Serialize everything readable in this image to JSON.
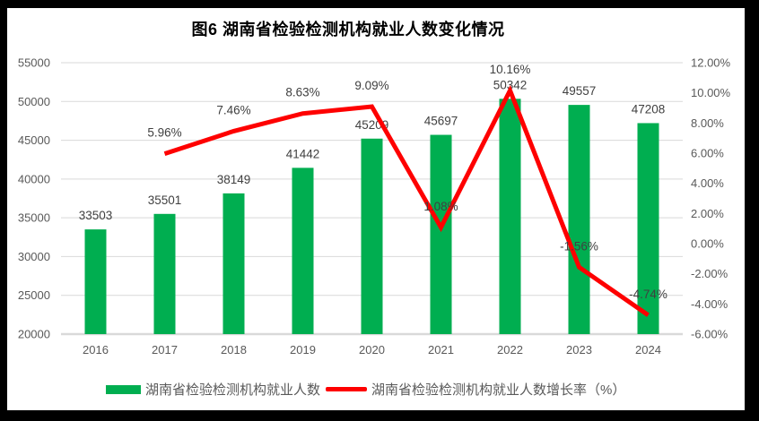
{
  "title": "图6 湖南省检验检测机构就业人数变化情况",
  "colors": {
    "bar": "#00AE50",
    "line": "#FE0000",
    "grid": "#D9D9D9",
    "axis_text": "#595959",
    "data_label": "#404040",
    "frame": "#000000",
    "panel": "#FFFFFF"
  },
  "legend": [
    {
      "series": "bar",
      "label": "湖南省检验检测机构就业人数"
    },
    {
      "series": "line",
      "label": "湖南省检验检测机构就业人数增长率（%）"
    }
  ],
  "chart_data": {
    "type": "bar+line combo",
    "title": "图6 湖南省检验检测机构就业人数变化情况",
    "categories": [
      "2016",
      "2017",
      "2018",
      "2019",
      "2020",
      "2021",
      "2022",
      "2023",
      "2024"
    ],
    "series": [
      {
        "name": "湖南省检验检测机构就业人数",
        "type": "bar",
        "axis": "left",
        "values": [
          33503,
          35501,
          38149,
          41442,
          45209,
          45697,
          50342,
          49557,
          47208
        ],
        "labels": [
          "33503",
          "35501",
          "38149",
          "41442",
          "45209",
          "45697",
          "50342",
          "49557",
          "47208"
        ]
      },
      {
        "name": "湖南省检验检测机构就业人数增长率（%）",
        "type": "line",
        "axis": "right",
        "values": [
          null,
          5.96,
          7.46,
          8.63,
          9.09,
          1.08,
          10.16,
          -1.56,
          -4.74
        ],
        "labels": [
          null,
          "5.96%",
          "7.46%",
          "8.63%",
          "9.09%",
          "1.08%",
          "10.16%",
          "-1.56%",
          "-4.74%"
        ]
      }
    ],
    "left_axis": {
      "min": 20000,
      "max": 55000,
      "step": 5000,
      "ticks": [
        "55000",
        "50000",
        "45000",
        "40000",
        "35000",
        "30000",
        "25000",
        "20000"
      ]
    },
    "right_axis": {
      "min": -6,
      "max": 12,
      "step": 2,
      "ticks": [
        "12.00%",
        "10.00%",
        "8.00%",
        "6.00%",
        "4.00%",
        "2.00%",
        "0.00%",
        "-2.00%",
        "-4.00%",
        "-6.00%"
      ]
    },
    "grid": true,
    "legend_position": "bottom"
  }
}
